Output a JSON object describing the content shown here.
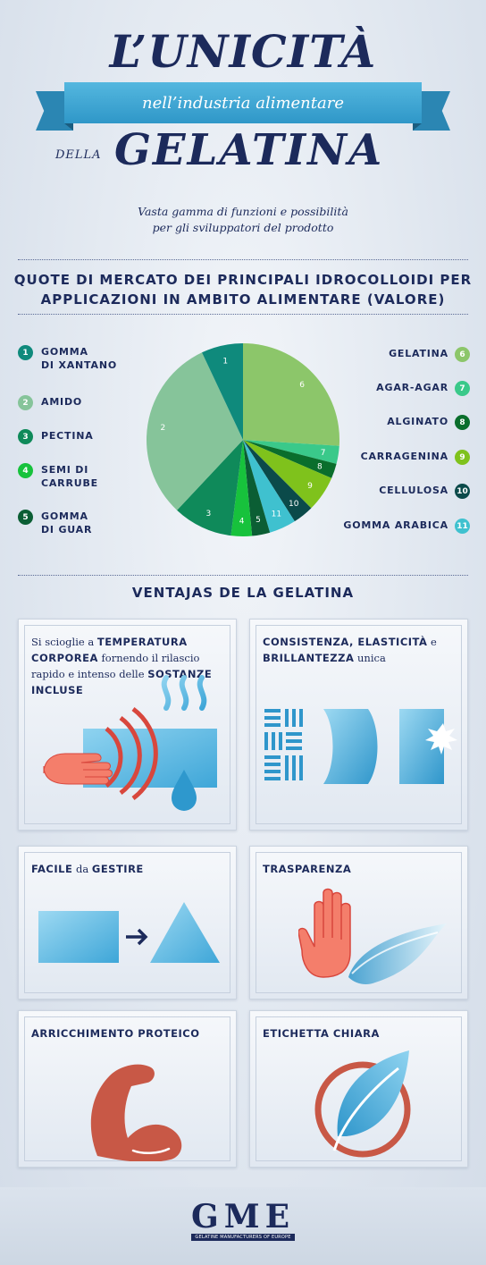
{
  "header": {
    "title_top": "L’UNICITÀ",
    "ribbon": "nell’industria alimentare",
    "della": "DELLA",
    "title_bottom": "GELATINA",
    "subtitle_line1": "Vasta gamma di funzioni e possibilità",
    "subtitle_line2": "per gli sviluppatori del prodotto"
  },
  "market": {
    "title_line1": "QUOTE DI MERCATO DEI PRINCIPALI IDROCOLLOIDI PER",
    "title_line2": "APPLICAZIONI IN AMBITO ALIMENTARE (VALORE)",
    "legend_left": [
      {
        "num": "1",
        "line1": "GOMMA",
        "line2": "DI XANTANO",
        "color": "#0f8a7c"
      },
      {
        "num": "2",
        "line1": "AMIDO",
        "line2": "",
        "color": "#86c49a"
      },
      {
        "num": "3",
        "line1": "PECTINA",
        "line2": "",
        "color": "#0f8a5a"
      },
      {
        "num": "4",
        "line1": "SEMI DI",
        "line2": "CARRUBE",
        "color": "#17c23c"
      },
      {
        "num": "5",
        "line1": "GOMMA",
        "line2": "DI GUAR",
        "color": "#0b5e34"
      }
    ],
    "legend_right": [
      {
        "num": "6",
        "label": "GELATINA",
        "color": "#8cc66a"
      },
      {
        "num": "7",
        "label": "AGAR-AGAR",
        "color": "#3ac98a"
      },
      {
        "num": "8",
        "label": "ALGINATO",
        "color": "#0a6e2c"
      },
      {
        "num": "9",
        "label": "CARRAGENINA",
        "color": "#7fc21c"
      },
      {
        "num": "10",
        "label": "CELLULOSA",
        "color": "#0b4a4a"
      },
      {
        "num": "11",
        "label": "GOMMA ARABICA",
        "color": "#3fc1cf"
      }
    ]
  },
  "chart_data": {
    "type": "pie",
    "categories": [
      "1",
      "2",
      "3",
      "4",
      "5",
      "6",
      "7",
      "8",
      "9",
      "10",
      "11"
    ],
    "values": [
      7,
      31,
      10,
      3.5,
      3,
      26,
      3,
      2.5,
      6,
      3.5,
      4.5
    ],
    "title": "QUOTE DI MERCATO DEI PRINCIPALI IDROCOLLOIDI PER APPLICAZIONI IN AMBITO ALIMENTARE (VALORE)",
    "colors": [
      "#0f8a7c",
      "#86c49a",
      "#0f8a5a",
      "#17c23c",
      "#0b5e34",
      "#8cc66a",
      "#3ac98a",
      "#0a6e2c",
      "#7fc21c",
      "#0b4a4a",
      "#3fc1cf"
    ]
  },
  "advantages": {
    "title": "VENTAJAS DE LA GELATINA",
    "card1": {
      "p1": "Si scioglie a ",
      "b1": "TEMPERATURA CORPOREA",
      "p2": " fornendo il rilascio rapido e intenso delle ",
      "b2": "SOSTANZE INCLUSE"
    },
    "card2": {
      "b1": "CONSISTENZA, ELASTICITÀ",
      "p1": " e ",
      "b2": "BRILLANTEZZA",
      "p2": " unica"
    },
    "card3": {
      "b1": "FACILE",
      "p1": " da ",
      "b2": "GESTIRE"
    },
    "card4": {
      "b1": "TRASPARENZA"
    },
    "card5": {
      "b1": "ARRICCHIMENTO PROTEICO"
    },
    "card6": {
      "b1": "ETICHETTA CHIARA"
    }
  },
  "footer": {
    "logo": "GME",
    "tagline": "GELATINE MANUFACTURERS OF EUROPE"
  }
}
